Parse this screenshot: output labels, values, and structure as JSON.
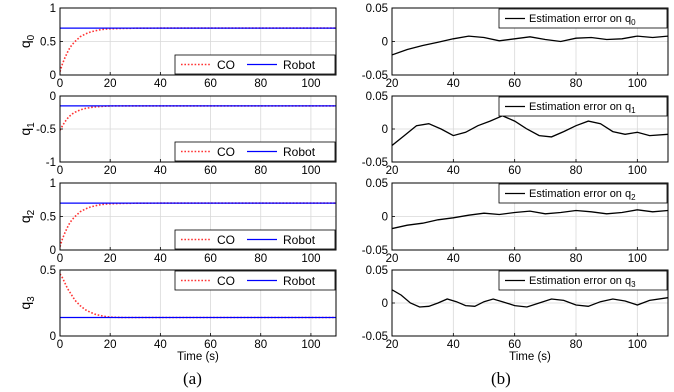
{
  "figure": {
    "caption_left": "(a)",
    "caption_right": "(b)",
    "colors": {
      "co": "#ff3333",
      "robot": "#0000ff",
      "error": "#000000",
      "grid": "#d9d9d9",
      "axis": "#000000"
    }
  },
  "chart_data": [
    {
      "type": "line",
      "column": "left",
      "row": 0,
      "ylabel": "q",
      "ylabel_sub": "0",
      "xlim": [
        0,
        110
      ],
      "ylim": [
        0,
        1
      ],
      "x_ticks": [
        0,
        20,
        40,
        60,
        80,
        100
      ],
      "x_tick_labels": [
        "0",
        "20",
        "40",
        "60",
        "80",
        "100"
      ],
      "y_ticks": [
        0,
        0.5,
        1
      ],
      "y_tick_labels": [
        "0",
        "0.5",
        "1"
      ],
      "grid": true,
      "legend_position": "bottom-right",
      "legend": [
        "CO",
        "Robot"
      ],
      "series": [
        {
          "name": "CO",
          "style": "dotted",
          "color": "#ff3333",
          "x": [
            0,
            1,
            2,
            3,
            4,
            5,
            6,
            8,
            10,
            12,
            14,
            16,
            18,
            20,
            25,
            30,
            40,
            60,
            80,
            100,
            110
          ],
          "y": [
            0.05,
            0.17,
            0.26,
            0.34,
            0.41,
            0.46,
            0.5,
            0.57,
            0.61,
            0.64,
            0.66,
            0.675,
            0.685,
            0.69,
            0.695,
            0.698,
            0.7,
            0.7,
            0.7,
            0.7,
            0.7
          ]
        },
        {
          "name": "Robot",
          "style": "solid",
          "color": "#0000ff",
          "x": [
            0,
            110
          ],
          "y": [
            0.7,
            0.7
          ]
        }
      ]
    },
    {
      "type": "line",
      "column": "left",
      "row": 1,
      "ylabel": "q",
      "ylabel_sub": "1",
      "xlim": [
        0,
        110
      ],
      "ylim": [
        -1,
        0
      ],
      "x_ticks": [
        0,
        20,
        40,
        60,
        80,
        100
      ],
      "x_tick_labels": [
        "0",
        "20",
        "40",
        "60",
        "80",
        "100"
      ],
      "y_ticks": [
        -1,
        -0.5,
        0
      ],
      "y_tick_labels": [
        "-1",
        "-0.5",
        "0"
      ],
      "grid": true,
      "legend_position": "bottom-right",
      "legend": [
        "CO",
        "Robot"
      ],
      "series": [
        {
          "name": "CO",
          "style": "dotted",
          "color": "#ff3333",
          "x": [
            0,
            1,
            2,
            3,
            4,
            5,
            6,
            8,
            10,
            12,
            14,
            16,
            18,
            20,
            25,
            30,
            40,
            60,
            80,
            100,
            110
          ],
          "y": [
            -0.52,
            -0.45,
            -0.39,
            -0.34,
            -0.3,
            -0.27,
            -0.245,
            -0.21,
            -0.19,
            -0.175,
            -0.165,
            -0.16,
            -0.155,
            -0.152,
            -0.15,
            -0.15,
            -0.15,
            -0.15,
            -0.15,
            -0.15,
            -0.15
          ]
        },
        {
          "name": "Robot",
          "style": "solid",
          "color": "#0000ff",
          "x": [
            0,
            110
          ],
          "y": [
            -0.15,
            -0.15
          ]
        }
      ]
    },
    {
      "type": "line",
      "column": "left",
      "row": 2,
      "ylabel": "q",
      "ylabel_sub": "2",
      "xlim": [
        0,
        110
      ],
      "ylim": [
        0,
        1
      ],
      "x_ticks": [
        0,
        20,
        40,
        60,
        80,
        100
      ],
      "x_tick_labels": [
        "0",
        "20",
        "40",
        "60",
        "80",
        "100"
      ],
      "y_ticks": [
        0,
        0.5,
        1
      ],
      "y_tick_labels": [
        "0",
        "0.5",
        "1"
      ],
      "grid": true,
      "legend_position": "bottom-right",
      "legend": [
        "CO",
        "Robot"
      ],
      "series": [
        {
          "name": "CO",
          "style": "dotted",
          "color": "#ff3333",
          "x": [
            0,
            1,
            2,
            3,
            4,
            5,
            6,
            8,
            10,
            12,
            14,
            16,
            18,
            20,
            25,
            30,
            40,
            60,
            80,
            100,
            110
          ],
          "y": [
            0.05,
            0.17,
            0.26,
            0.34,
            0.41,
            0.46,
            0.5,
            0.57,
            0.61,
            0.64,
            0.66,
            0.675,
            0.685,
            0.69,
            0.695,
            0.698,
            0.7,
            0.7,
            0.7,
            0.7,
            0.7
          ]
        },
        {
          "name": "Robot",
          "style": "solid",
          "color": "#0000ff",
          "x": [
            0,
            110
          ],
          "y": [
            0.7,
            0.7
          ]
        }
      ]
    },
    {
      "type": "line",
      "column": "left",
      "row": 3,
      "ylabel": "q",
      "ylabel_sub": "3",
      "xlabel": "Time (s)",
      "xlim": [
        0,
        110
      ],
      "ylim": [
        0,
        0.5
      ],
      "x_ticks": [
        0,
        20,
        40,
        60,
        80,
        100
      ],
      "x_tick_labels": [
        "0",
        "20",
        "40",
        "60",
        "80",
        "100"
      ],
      "y_ticks": [
        0,
        0.5
      ],
      "y_tick_labels": [
        "0",
        "0.5"
      ],
      "grid": true,
      "legend_position": "top-right",
      "legend": [
        "CO",
        "Robot"
      ],
      "series": [
        {
          "name": "CO",
          "style": "dotted",
          "color": "#ff3333",
          "x": [
            0,
            1,
            2,
            3,
            4,
            5,
            6,
            8,
            10,
            12,
            14,
            16,
            18,
            20,
            25,
            30,
            40,
            60,
            80,
            100,
            110
          ],
          "y": [
            0.47,
            0.44,
            0.4,
            0.36,
            0.33,
            0.3,
            0.27,
            0.23,
            0.2,
            0.18,
            0.165,
            0.155,
            0.148,
            0.143,
            0.14,
            0.14,
            0.14,
            0.14,
            0.14,
            0.14,
            0.14
          ]
        },
        {
          "name": "Robot",
          "style": "solid",
          "color": "#0000ff",
          "x": [
            0,
            110
          ],
          "y": [
            0.14,
            0.14
          ]
        }
      ]
    },
    {
      "type": "line",
      "column": "right",
      "row": 0,
      "xlim": [
        20,
        110
      ],
      "ylim": [
        -0.05,
        0.05
      ],
      "x_ticks": [
        20,
        40,
        60,
        80,
        100
      ],
      "x_tick_labels": [
        "20",
        "40",
        "60",
        "80",
        "100"
      ],
      "y_ticks": [
        -0.05,
        0,
        0.05
      ],
      "y_tick_labels": [
        "-0.05",
        "0",
        "0.05"
      ],
      "grid": true,
      "legend_position": "top-right",
      "legend_sub": "0",
      "series": [
        {
          "name": "Estimation error on q",
          "style": "solid",
          "color": "#000000",
          "x": [
            20,
            25,
            30,
            35,
            40,
            45,
            50,
            55,
            60,
            65,
            70,
            75,
            80,
            85,
            90,
            95,
            100,
            105,
            110
          ],
          "y": [
            -0.02,
            -0.012,
            -0.006,
            -0.001,
            0.004,
            0.008,
            0.006,
            0.001,
            0.004,
            0.007,
            0.003,
            0.0,
            0.005,
            0.006,
            0.003,
            0.004,
            0.008,
            0.006,
            0.008
          ]
        }
      ]
    },
    {
      "type": "line",
      "column": "right",
      "row": 1,
      "xlim": [
        20,
        110
      ],
      "ylim": [
        -0.05,
        0.05
      ],
      "x_ticks": [
        20,
        40,
        60,
        80,
        100
      ],
      "x_tick_labels": [
        "20",
        "40",
        "60",
        "80",
        "100"
      ],
      "y_ticks": [
        -0.05,
        0,
        0.05
      ],
      "y_tick_labels": [
        "-0.05",
        "0",
        "0.05"
      ],
      "grid": true,
      "legend_position": "top-right",
      "legend_sub": "1",
      "series": [
        {
          "name": "Estimation error on q",
          "style": "solid",
          "color": "#000000",
          "x": [
            20,
            24,
            28,
            32,
            36,
            40,
            44,
            48,
            52,
            56,
            60,
            64,
            68,
            72,
            76,
            80,
            84,
            88,
            92,
            96,
            100,
            104,
            110
          ],
          "y": [
            -0.025,
            -0.01,
            0.005,
            0.008,
            0.0,
            -0.01,
            -0.005,
            0.005,
            0.012,
            0.02,
            0.012,
            0.0,
            -0.01,
            -0.012,
            -0.004,
            0.005,
            0.012,
            0.008,
            -0.004,
            -0.008,
            -0.005,
            -0.01,
            -0.008
          ]
        }
      ]
    },
    {
      "type": "line",
      "column": "right",
      "row": 2,
      "xlim": [
        20,
        110
      ],
      "ylim": [
        -0.05,
        0.05
      ],
      "x_ticks": [
        20,
        40,
        60,
        80,
        100
      ],
      "x_tick_labels": [
        "20",
        "40",
        "60",
        "80",
        "100"
      ],
      "y_ticks": [
        -0.05,
        0,
        0.05
      ],
      "y_tick_labels": [
        "-0.05",
        "0",
        "0.05"
      ],
      "grid": true,
      "legend_position": "top-right",
      "legend_sub": "2",
      "series": [
        {
          "name": "Estimation error on q",
          "style": "solid",
          "color": "#000000",
          "x": [
            20,
            25,
            30,
            35,
            40,
            45,
            50,
            55,
            60,
            65,
            70,
            75,
            80,
            85,
            90,
            95,
            100,
            105,
            110
          ],
          "y": [
            -0.018,
            -0.013,
            -0.01,
            -0.005,
            -0.002,
            0.002,
            0.005,
            0.003,
            0.006,
            0.008,
            0.004,
            0.006,
            0.009,
            0.007,
            0.004,
            0.006,
            0.01,
            0.007,
            0.009
          ]
        }
      ]
    },
    {
      "type": "line",
      "column": "right",
      "row": 3,
      "xlabel": "Time (s)",
      "xlim": [
        20,
        110
      ],
      "ylim": [
        -0.05,
        0.05
      ],
      "x_ticks": [
        20,
        40,
        60,
        80,
        100
      ],
      "x_tick_labels": [
        "20",
        "40",
        "60",
        "80",
        "100"
      ],
      "y_ticks": [
        -0.05,
        0,
        0.05
      ],
      "y_tick_labels": [
        "-0.05",
        "0",
        "0.05"
      ],
      "grid": true,
      "legend_position": "top-right",
      "legend_sub": "3",
      "series": [
        {
          "name": "Estimation error on q",
          "style": "solid",
          "color": "#000000",
          "x": [
            20,
            23,
            26,
            29,
            32,
            35,
            38,
            41,
            44,
            47,
            50,
            53,
            56,
            60,
            64,
            68,
            72,
            76,
            80,
            84,
            88,
            92,
            96,
            100,
            104,
            110
          ],
          "y": [
            0.02,
            0.012,
            0.0,
            -0.006,
            -0.005,
            0.0,
            0.006,
            0.002,
            -0.004,
            -0.005,
            0.002,
            0.006,
            0.002,
            -0.004,
            -0.006,
            0.0,
            0.006,
            0.004,
            -0.003,
            -0.005,
            0.002,
            0.006,
            0.003,
            -0.003,
            0.004,
            0.008
          ]
        }
      ]
    }
  ]
}
